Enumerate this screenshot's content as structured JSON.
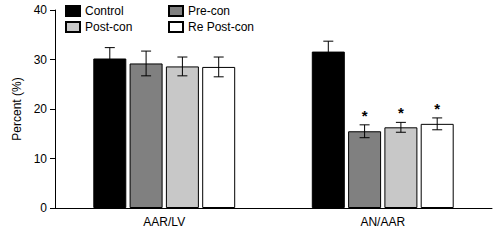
{
  "chart_data": {
    "type": "bar",
    "y_label": "Percent (%)",
    "categories": [
      "AAR/LV",
      "AN/AAR"
    ],
    "series": [
      {
        "name": "Control",
        "color": "#000000",
        "values": [
          30.2,
          31.6
        ],
        "errors": [
          2.2,
          2.1
        ]
      },
      {
        "name": "Pre-con",
        "color": "#808080",
        "values": [
          29.2,
          15.5
        ],
        "errors": [
          2.5,
          1.3
        ]
      },
      {
        "name": "Post-con",
        "color": "#c8c8c8",
        "values": [
          28.6,
          16.3
        ],
        "errors": [
          1.9,
          1.0
        ]
      },
      {
        "name": "Re Post-con",
        "color": "#ffffff",
        "values": [
          28.5,
          17.0
        ],
        "errors": [
          2.0,
          1.2
        ]
      }
    ],
    "annotations": [
      {
        "text": "*",
        "category": "AN/AAR",
        "series": "Pre-con"
      },
      {
        "text": "*",
        "category": "AN/AAR",
        "series": "Post-con"
      },
      {
        "text": "*",
        "category": "AN/AAR",
        "series": "Re Post-con"
      }
    ],
    "ylim": [
      0,
      40
    ],
    "yticks": [
      0,
      10,
      20,
      30,
      40
    ],
    "grid": false,
    "legend": "upper left"
  }
}
